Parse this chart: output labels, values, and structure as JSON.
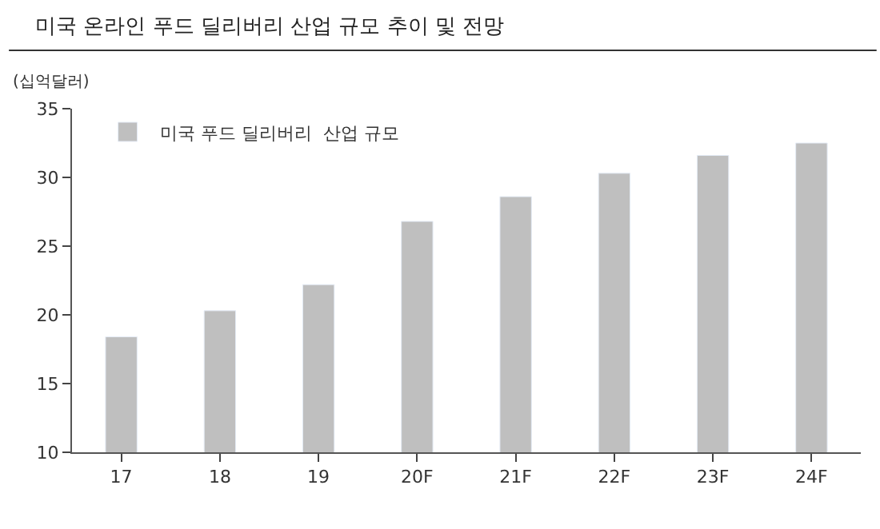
{
  "chart_data": {
    "type": "bar",
    "title": "미국 온라인 푸드 딜리버리 산업 규모 추이 및 전망",
    "ylabel": "(십억달러)",
    "categories": [
      "17",
      "18",
      "19",
      "20F",
      "21F",
      "22F",
      "23F",
      "24F"
    ],
    "series": [
      {
        "name": "미국 푸드 딜리버리  산업 규모",
        "color": "#bfbfbf",
        "values": [
          18.4,
          20.3,
          22.2,
          26.8,
          28.6,
          30.3,
          31.6,
          32.5
        ]
      }
    ],
    "ylim": [
      10,
      35
    ],
    "yticks": [
      10,
      15,
      20,
      25,
      30,
      35
    ],
    "legend": "top left"
  }
}
